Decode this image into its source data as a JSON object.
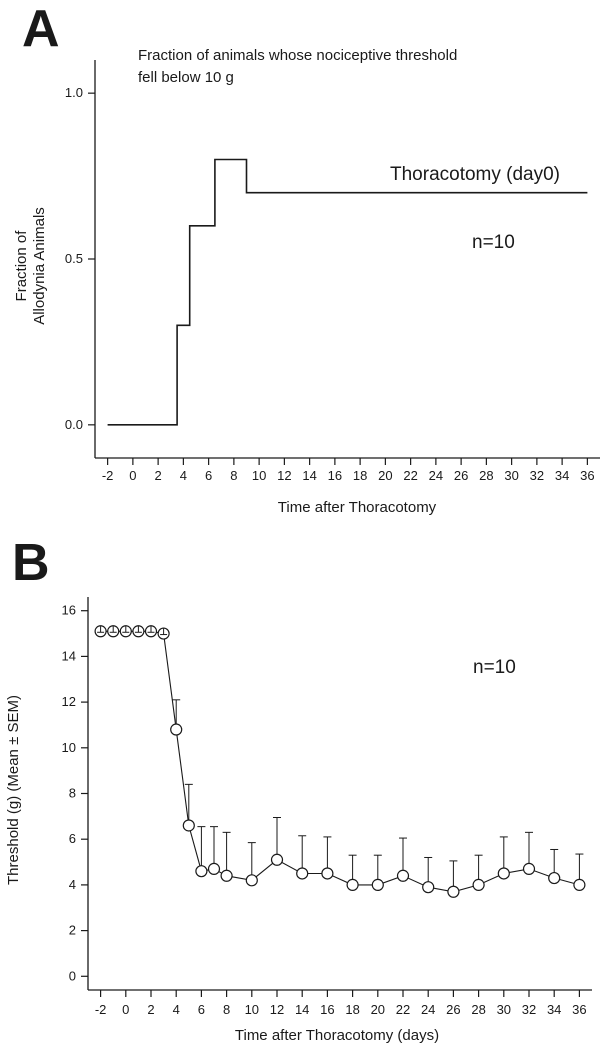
{
  "chart_data": [
    {
      "panel": "A",
      "type": "line",
      "step": true,
      "annotation_lines": [
        "Fraction of animals whose nociceptive threshold",
        "fell below 10 g"
      ],
      "series": [
        {
          "name": "Thoracotomy (day0)",
          "points": [
            [
              -2,
              0
            ],
            [
              3.5,
              0
            ],
            [
              3.5,
              0.3
            ],
            [
              4.5,
              0.3
            ],
            [
              4.5,
              0.6
            ],
            [
              6.5,
              0.6
            ],
            [
              6.5,
              0.8
            ],
            [
              9,
              0.8
            ],
            [
              9,
              0.7
            ],
            [
              36,
              0.7
            ]
          ]
        }
      ],
      "n_label": "n=10",
      "xlabel": "Time after Thoracotomy",
      "ylabel_lines": [
        "Fraction of",
        "Allodynia Animals"
      ],
      "xlim": [
        -3,
        37
      ],
      "ylim": [
        -0.1,
        1.1
      ],
      "xticks": [
        -2,
        0,
        2,
        4,
        6,
        8,
        10,
        12,
        14,
        16,
        18,
        20,
        22,
        24,
        26,
        28,
        30,
        32,
        34,
        36
      ],
      "yticks": [
        0.0,
        0.5,
        1.0
      ],
      "ytick_labels": [
        "0.0",
        "0.5",
        "1.0"
      ],
      "grid": false
    },
    {
      "panel": "B",
      "type": "line",
      "markers": "open-circle",
      "error_bars": "upper SEM",
      "series": [
        {
          "name": "Threshold",
          "x": [
            -2,
            -1,
            0,
            1,
            2,
            3,
            4,
            5,
            6,
            7,
            8,
            10,
            12,
            14,
            16,
            18,
            20,
            22,
            24,
            26,
            28,
            30,
            32,
            34,
            36
          ],
          "y": [
            15.1,
            15.1,
            15.1,
            15.1,
            15.1,
            15.0,
            10.8,
            6.6,
            4.6,
            4.7,
            4.4,
            4.2,
            5.1,
            4.5,
            4.5,
            4.0,
            4.0,
            4.4,
            3.9,
            3.7,
            4.0,
            4.5,
            4.7,
            4.3,
            4.0
          ],
          "sem": [
            0,
            0,
            0,
            0,
            0,
            0,
            1.3,
            1.8,
            1.95,
            1.85,
            1.9,
            1.65,
            1.85,
            1.65,
            1.6,
            1.3,
            1.3,
            1.65,
            1.3,
            1.35,
            1.3,
            1.6,
            1.6,
            1.25,
            1.35
          ]
        }
      ],
      "n_label": "n=10",
      "xlabel": "Time after Thoracotomy (days)",
      "ylabel": "Threshold (g) (Mean ± SEM)",
      "xlim": [
        -3,
        37
      ],
      "ylim": [
        -0.6,
        16.6
      ],
      "xticks": [
        -2,
        0,
        2,
        4,
        6,
        8,
        10,
        12,
        14,
        16,
        18,
        20,
        22,
        24,
        26,
        28,
        30,
        32,
        34,
        36
      ],
      "yticks": [
        0,
        2,
        4,
        6,
        8,
        10,
        12,
        14,
        16
      ],
      "grid": false
    }
  ]
}
